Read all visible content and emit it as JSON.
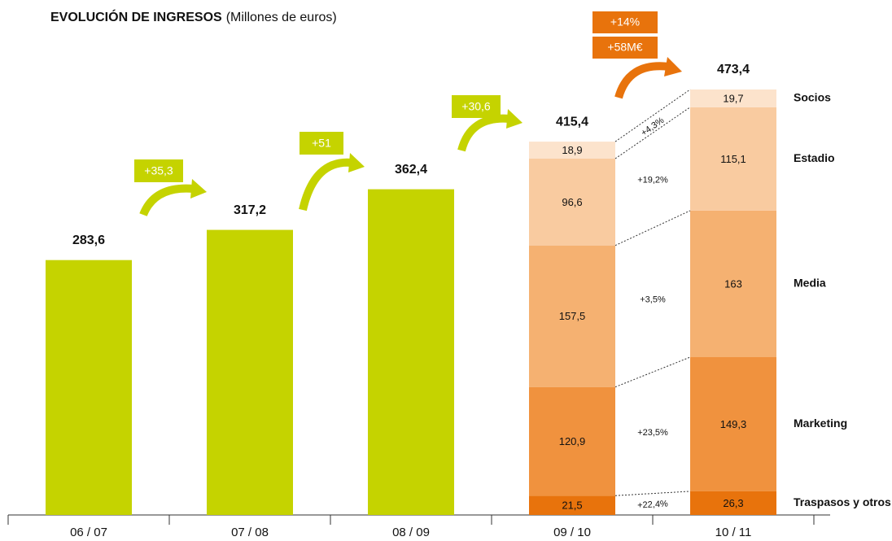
{
  "chart_data": {
    "type": "bar",
    "title": "EVOLUCIÓN DE INGRESOS",
    "subtitle": "(Millones de euros)",
    "categories": [
      "06 / 07",
      "07 / 08",
      "08 / 09",
      "09 / 10",
      "10 / 11"
    ],
    "values": [
      283.6,
      317.2,
      362.4,
      415.4,
      473.4
    ],
    "value_labels": [
      "283,6",
      "317,2",
      "362,4",
      "415,4",
      "473,4"
    ],
    "color": "#c5d300",
    "series": [
      {
        "name": "Traspasos y otros",
        "color": "#e8730c",
        "values": [
          null,
          null,
          null,
          21.5,
          26.3
        ],
        "value_labels": [
          null,
          null,
          null,
          "21,5",
          "26,3"
        ],
        "change_label": "+22,4%"
      },
      {
        "name": "Marketing",
        "color": "#f0923e",
        "values": [
          null,
          null,
          null,
          120.9,
          149.3
        ],
        "value_labels": [
          null,
          null,
          null,
          "120,9",
          "149,3"
        ],
        "change_label": "+23,5%"
      },
      {
        "name": "Media",
        "color": "#f5b171",
        "values": [
          null,
          null,
          null,
          157.5,
          163
        ],
        "value_labels": [
          null,
          null,
          null,
          "157,5",
          "163"
        ],
        "change_label": "+3,5%"
      },
      {
        "name": "Estadio",
        "color": "#f9cba0",
        "values": [
          null,
          null,
          null,
          96.6,
          115.1
        ],
        "value_labels": [
          null,
          null,
          null,
          "96,6",
          "115,1"
        ],
        "change_label": "+19,2%"
      },
      {
        "name": "Socios",
        "color": "#fce3cc",
        "values": [
          null,
          null,
          null,
          18.9,
          19.7
        ],
        "value_labels": [
          null,
          null,
          null,
          "18,9",
          "19,7"
        ],
        "change_label": "+4,3%"
      }
    ],
    "annotations": [
      "+35,3",
      "+51",
      "+30,6",
      "+14%",
      "+58M€"
    ]
  }
}
